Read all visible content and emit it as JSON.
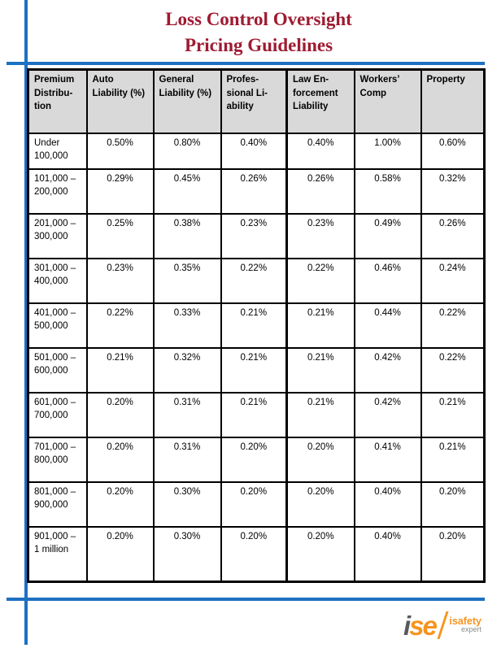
{
  "header": {
    "title_line1": "Loss Control Oversight",
    "title_line2": "Pricing Guidelines"
  },
  "colors": {
    "accent_blue": "#1d70c2",
    "title_red": "#9e1b32",
    "table_header_gray": "#d9d9d9",
    "logo_orange": "#f7941e",
    "logo_gray": "#58595b"
  },
  "table": {
    "columns": [
      "Premium\nDistribu-\ntion",
      "Auto\nLiability (%)",
      "General\nLiability (%)",
      "Profes-\nsional Li-\nability",
      "Law En-\nforcement\nLiability",
      "Workers’\nComp",
      "Property"
    ],
    "rows": [
      {
        "range": "Under\n100,000",
        "values": [
          "0.50%",
          "0.80%",
          "0.40%",
          "0.40%",
          "1.00%",
          "0.60%"
        ]
      },
      {
        "range": "101,000 –\n200,000",
        "values": [
          "0.29%",
          "0.45%",
          "0.26%",
          "0.26%",
          "0.58%",
          "0.32%"
        ]
      },
      {
        "range": "201,000 –\n300,000",
        "values": [
          "0.25%",
          "0.38%",
          "0.23%",
          "0.23%",
          "0.49%",
          "0.26%"
        ]
      },
      {
        "range": "301,000 –\n400,000",
        "values": [
          "0.23%",
          "0.35%",
          "0.22%",
          "0.22%",
          "0.46%",
          "0.24%"
        ]
      },
      {
        "range": "401,000 –\n500,000",
        "values": [
          "0.22%",
          "0.33%",
          "0.21%",
          "0.21%",
          "0.44%",
          "0.22%"
        ]
      },
      {
        "range": "501,000 –\n600,000",
        "values": [
          "0.21%",
          "0.32%",
          "0.21%",
          "0.21%",
          "0.42%",
          "0.22%"
        ]
      },
      {
        "range": "601,000 –\n700,000",
        "values": [
          "0.20%",
          "0.31%",
          "0.21%",
          "0.21%",
          "0.42%",
          "0.21%"
        ]
      },
      {
        "range": "701,000 –\n800,000",
        "values": [
          "0.20%",
          "0.31%",
          "0.20%",
          "0.20%",
          "0.41%",
          "0.21%"
        ]
      },
      {
        "range": "801,000 –\n900,000",
        "values": [
          "0.20%",
          "0.30%",
          "0.20%",
          "0.20%",
          "0.40%",
          "0.20%"
        ]
      },
      {
        "range": "901,000 –\n1 million",
        "values": [
          "0.20%",
          "0.30%",
          "0.20%",
          "0.20%",
          "0.40%",
          "0.20%"
        ]
      }
    ]
  },
  "logo": {
    "mark_i": "i",
    "mark_se": "se",
    "name": "isafety",
    "tagline": "expert"
  }
}
